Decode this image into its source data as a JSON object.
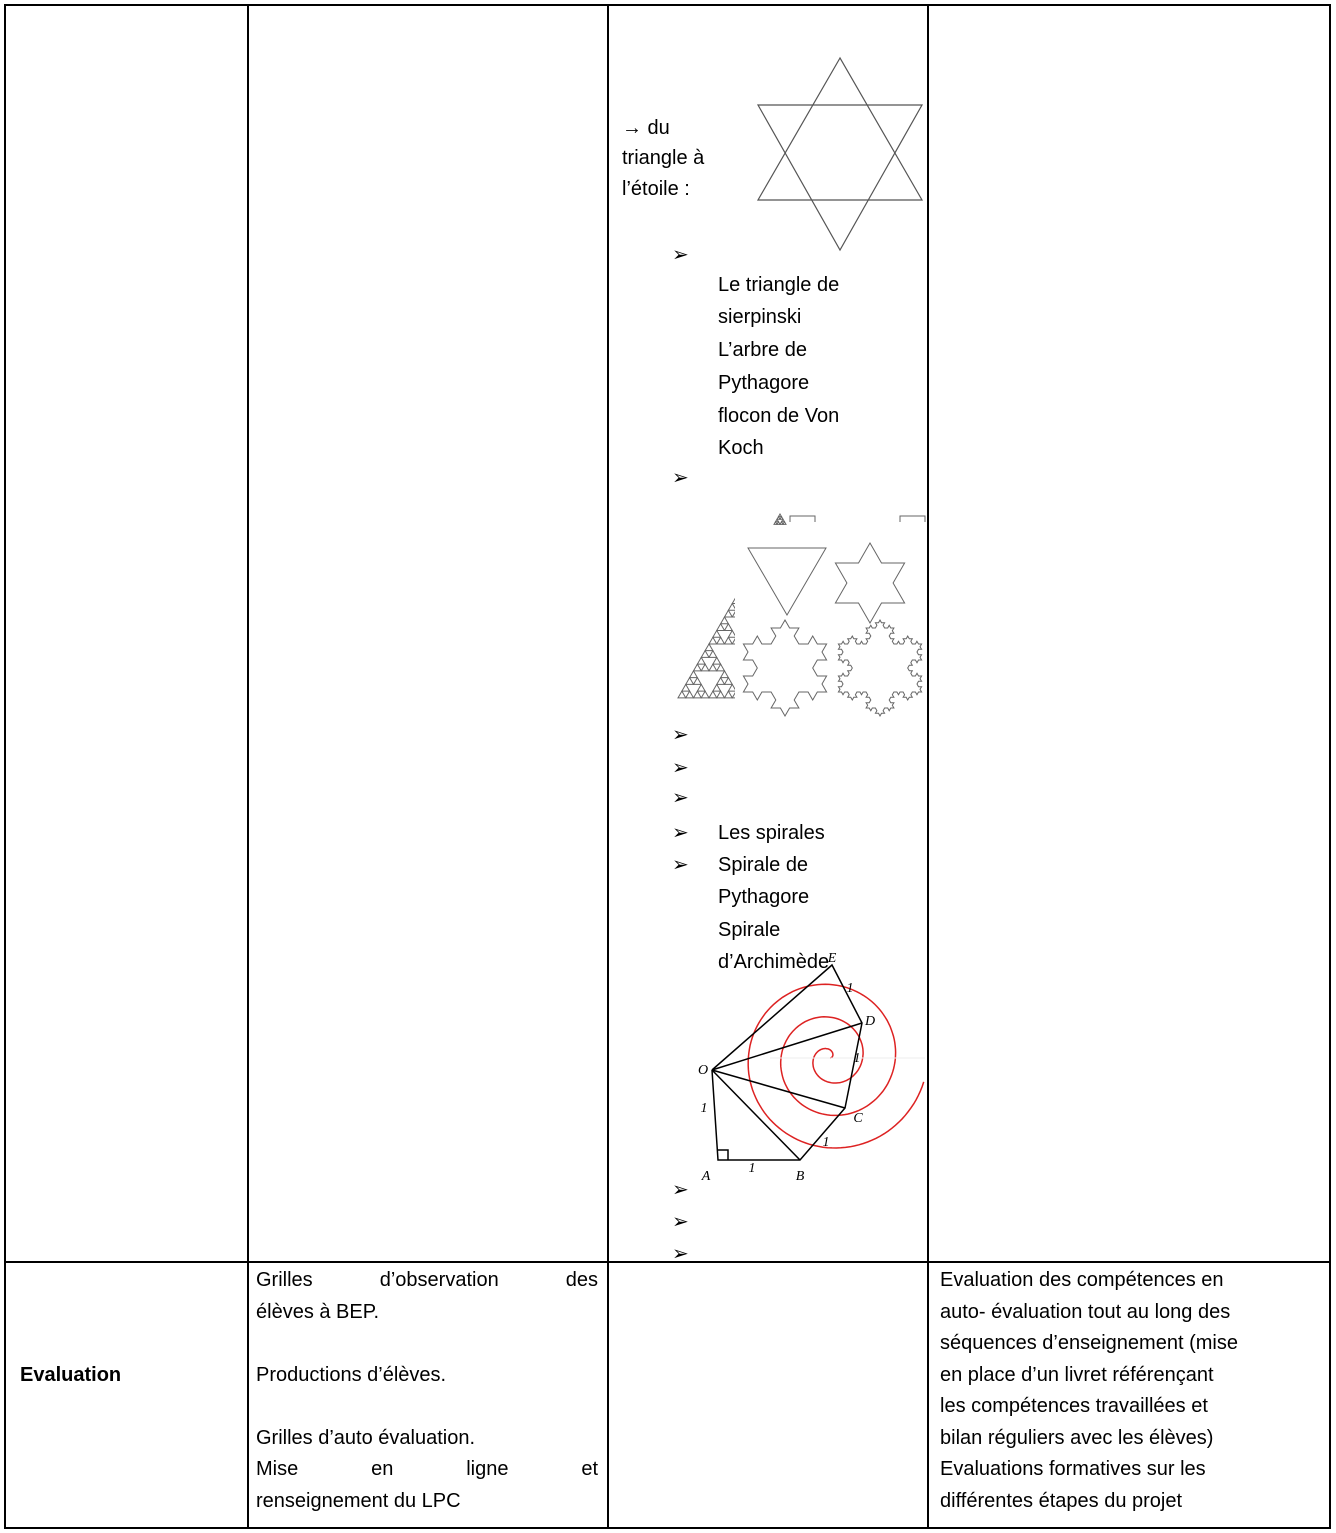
{
  "table": {
    "row1": {
      "col3": {
        "intro": [
          "→ du",
          "triangle à",
          "l’étoile :"
        ],
        "bullet": "➢",
        "list1": [
          "Le triangle de",
          "sierpinski",
          "L’arbre de",
          "Pythagore",
          "flocon de Von",
          "Koch"
        ],
        "list2": [
          "Les spirales",
          "Spirale de"
        ],
        "list3": [
          "Pythagore",
          "Spirale",
          "d’Archimède"
        ],
        "spiral_labels": [
          "E",
          "1",
          "D",
          "O",
          "1",
          "C",
          "1",
          "1",
          "A",
          "1",
          "B"
        ]
      }
    },
    "row2": {
      "header": "Evaluation",
      "col2": [
        "Grilles d’observation des",
        "élèves à BEP.",
        "Productions d’élèves.",
        "Grilles d’auto évaluation.",
        "Mise en ligne et",
        "renseignement du LPC"
      ],
      "col4": [
        "Evaluation des compétences en",
        "auto- évaluation tout au long des",
        "séquences d’enseignement (mise",
        "en place d’un livret référençant",
        "les compétences travaillées et",
        "bilan réguliers avec les élèves)",
        "Evaluations formatives sur les",
        "différentes étapes du projet"
      ]
    }
  }
}
